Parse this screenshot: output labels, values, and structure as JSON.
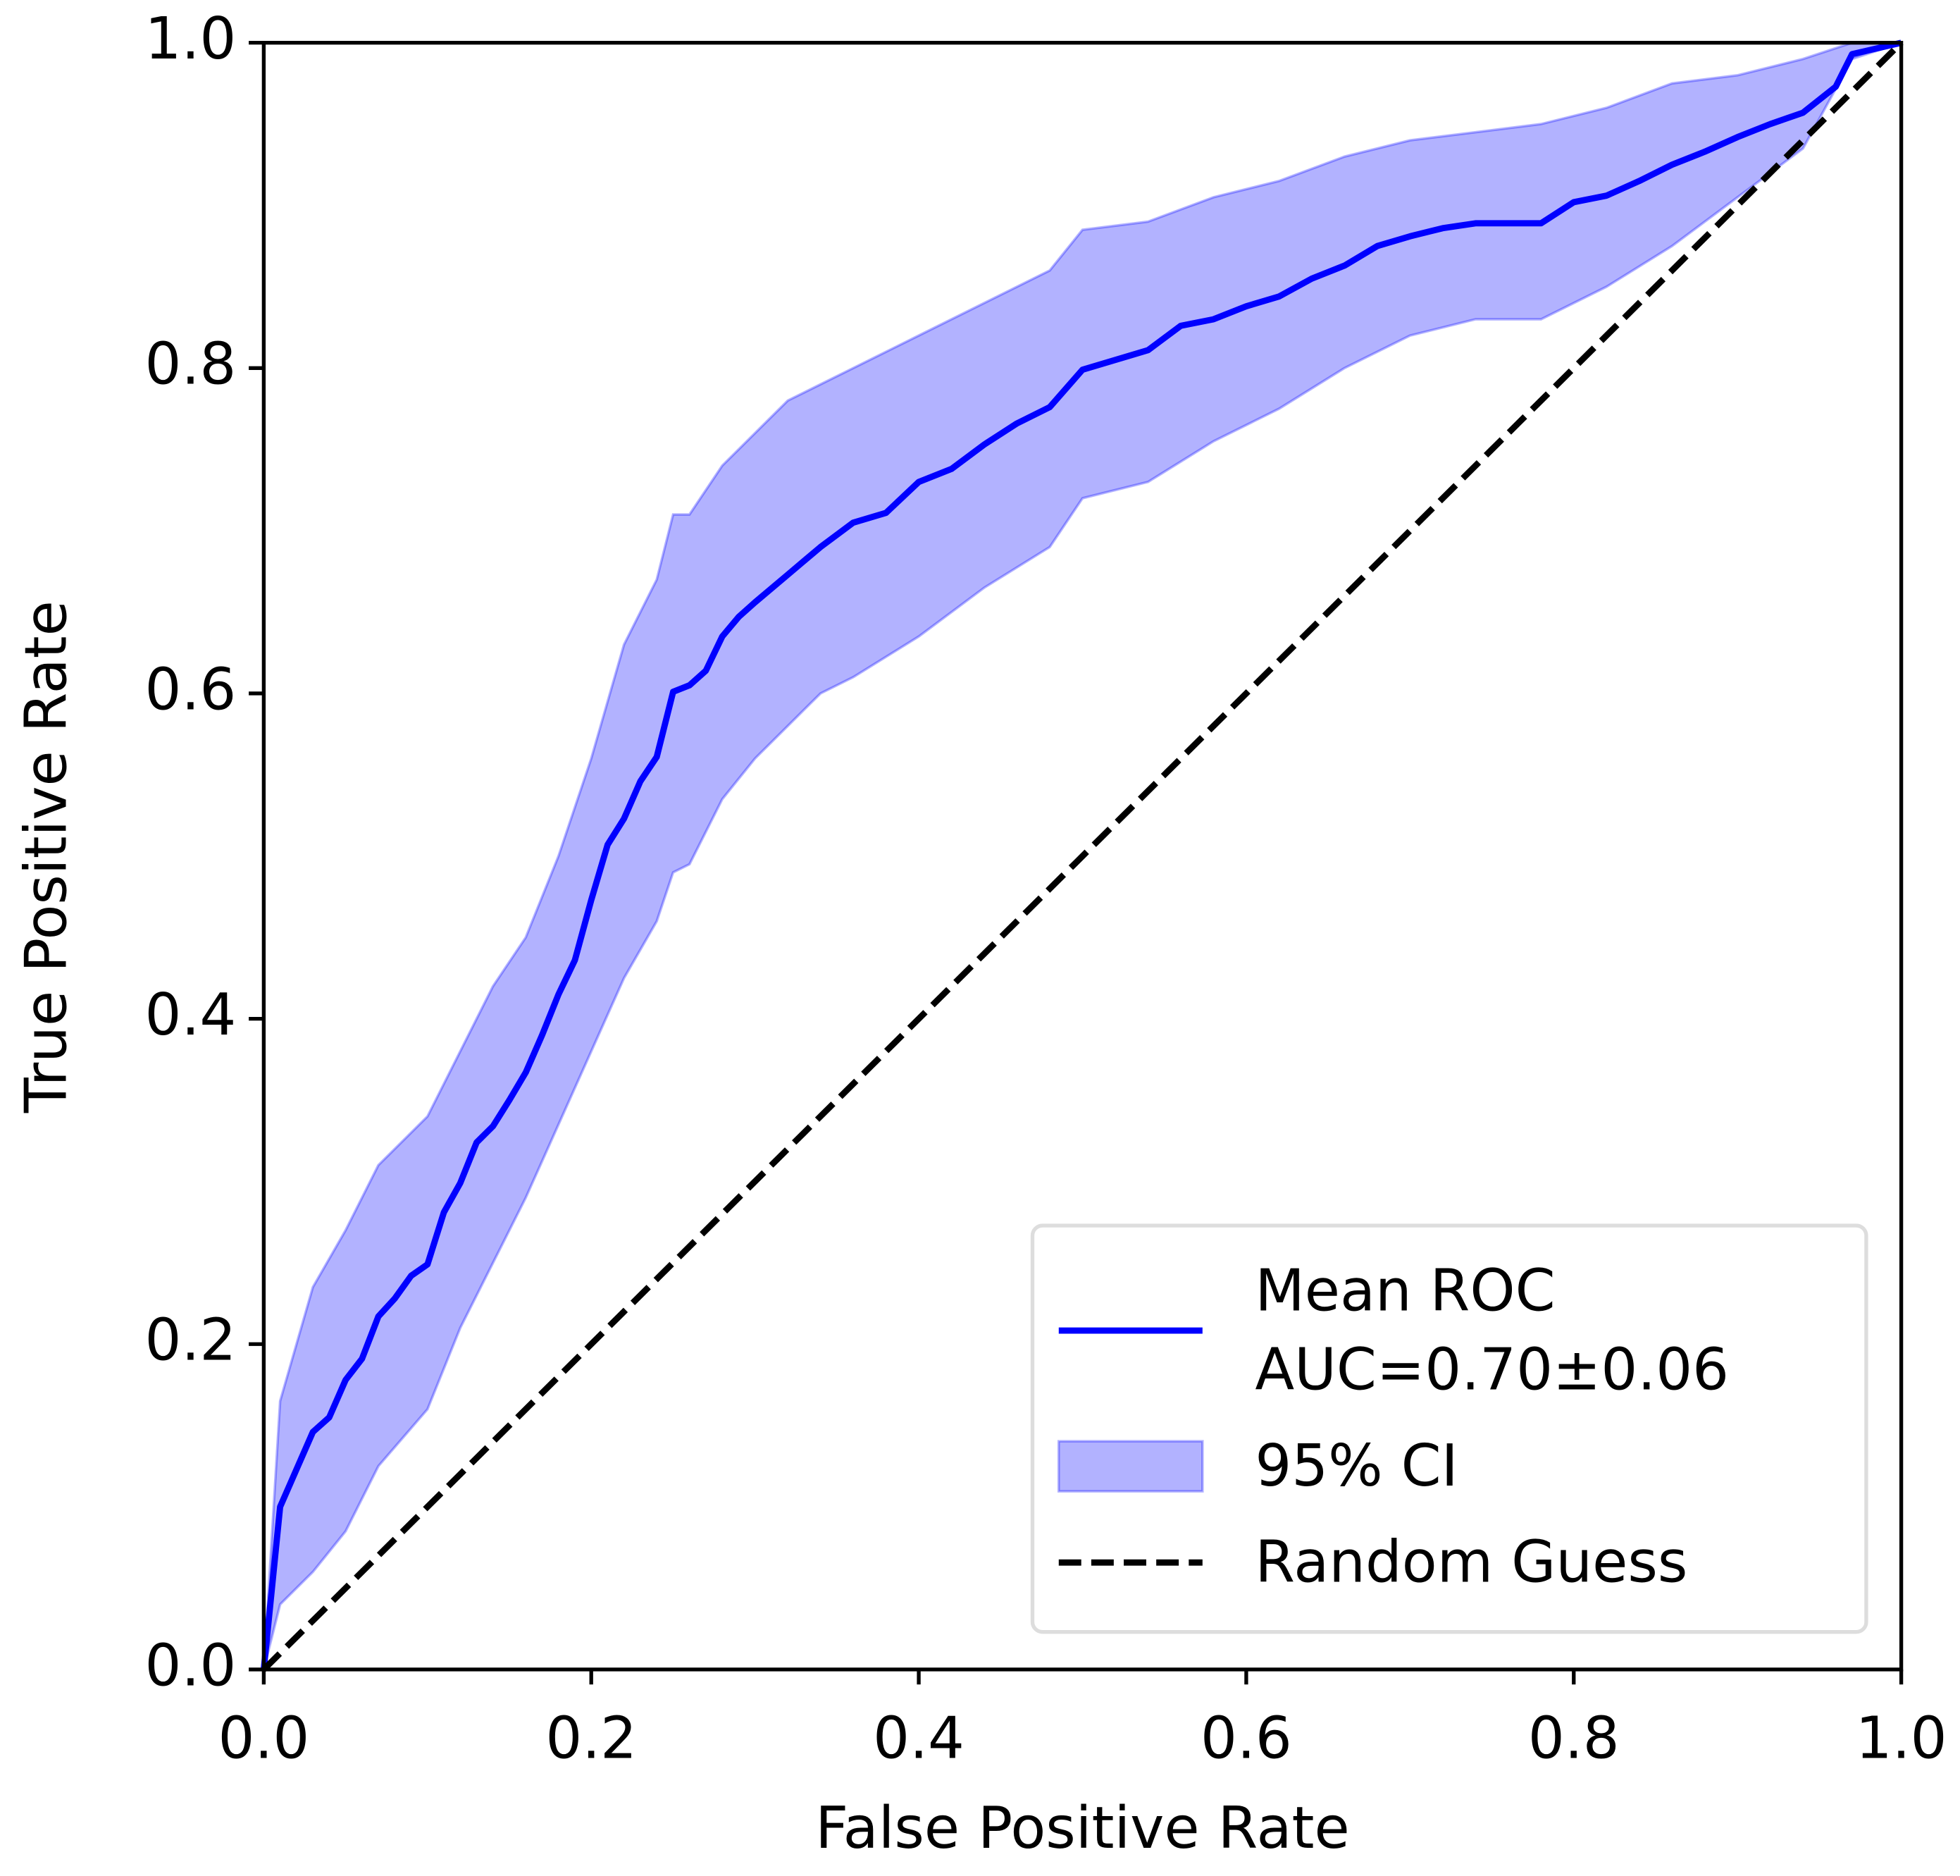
{
  "chart_data": {
    "type": "line",
    "xlabel": "False Positive Rate",
    "ylabel": "True Positive Rate",
    "xlim": [
      0,
      1
    ],
    "ylim": [
      0,
      1
    ],
    "xticks": [
      {
        "value": 0,
        "label": "0.0"
      },
      0.2,
      0.4,
      0.6,
      0.8,
      {
        "value": 1,
        "label": "1.0"
      }
    ],
    "yticks": [
      {
        "value": 0,
        "label": "0.0"
      },
      0.2,
      0.4,
      0.6,
      0.8,
      {
        "value": 1,
        "label": "1.0"
      }
    ],
    "grid": false,
    "legend": "lower right",
    "series": [
      {
        "name": "95% CI",
        "kind": "band",
        "color": "#0000ff",
        "x": [
          0,
          0.01,
          0.03,
          0.05,
          0.07,
          0.1,
          0.12,
          0.14,
          0.16,
          0.18,
          0.2,
          0.22,
          0.24,
          0.25,
          0.26,
          0.28,
          0.3,
          0.32,
          0.34,
          0.36,
          0.4,
          0.44,
          0.48,
          0.5,
          0.54,
          0.58,
          0.62,
          0.66,
          0.7,
          0.74,
          0.78,
          0.82,
          0.86,
          0.9,
          0.94,
          0.97,
          1.0
        ],
        "upper": [
          0,
          0.165,
          0.235,
          0.27,
          0.31,
          0.34,
          0.38,
          0.42,
          0.45,
          0.5,
          0.56,
          0.63,
          0.67,
          0.71,
          0.71,
          0.74,
          0.76,
          0.78,
          0.79,
          0.8,
          0.82,
          0.84,
          0.86,
          0.885,
          0.89,
          0.905,
          0.915,
          0.93,
          0.94,
          0.945,
          0.95,
          0.96,
          0.975,
          0.98,
          0.99,
          1.0,
          1.0
        ],
        "lower": [
          0,
          0.04,
          0.06,
          0.085,
          0.125,
          0.16,
          0.21,
          0.25,
          0.29,
          0.335,
          0.38,
          0.425,
          0.46,
          0.49,
          0.495,
          0.535,
          0.56,
          0.58,
          0.6,
          0.61,
          0.635,
          0.665,
          0.69,
          0.72,
          0.73,
          0.755,
          0.775,
          0.8,
          0.82,
          0.83,
          0.83,
          0.85,
          0.875,
          0.905,
          0.935,
          0.99,
          1.0
        ]
      },
      {
        "name": "Mean ROC\nAUC=0.70±0.06",
        "kind": "line",
        "linestyle": "solid",
        "color": "#0000ff",
        "x": [
          0,
          0.01,
          0.02,
          0.03,
          0.04,
          0.05,
          0.06,
          0.07,
          0.08,
          0.09,
          0.1,
          0.11,
          0.12,
          0.13,
          0.14,
          0.15,
          0.16,
          0.17,
          0.18,
          0.19,
          0.2,
          0.21,
          0.22,
          0.23,
          0.24,
          0.25,
          0.26,
          0.27,
          0.28,
          0.29,
          0.3,
          0.32,
          0.34,
          0.36,
          0.38,
          0.4,
          0.42,
          0.44,
          0.46,
          0.48,
          0.5,
          0.52,
          0.54,
          0.56,
          0.58,
          0.6,
          0.62,
          0.64,
          0.66,
          0.68,
          0.7,
          0.72,
          0.74,
          0.76,
          0.78,
          0.8,
          0.82,
          0.84,
          0.86,
          0.88,
          0.9,
          0.92,
          0.94,
          0.96,
          0.97,
          1.0
        ],
        "values": [
          0,
          0.1,
          0.123,
          0.146,
          0.155,
          0.178,
          0.191,
          0.217,
          0.228,
          0.242,
          0.249,
          0.281,
          0.299,
          0.324,
          0.334,
          0.35,
          0.367,
          0.39,
          0.415,
          0.436,
          0.473,
          0.507,
          0.523,
          0.546,
          0.561,
          0.601,
          0.605,
          0.614,
          0.635,
          0.647,
          0.656,
          0.673,
          0.69,
          0.705,
          0.711,
          0.73,
          0.738,
          0.753,
          0.766,
          0.776,
          0.799,
          0.805,
          0.811,
          0.826,
          0.83,
          0.838,
          0.844,
          0.855,
          0.863,
          0.875,
          0.881,
          0.886,
          0.889,
          0.889,
          0.889,
          0.902,
          0.906,
          0.915,
          0.925,
          0.933,
          0.942,
          0.95,
          0.957,
          0.973,
          0.993,
          1.0
        ]
      },
      {
        "name": "Random Guess",
        "kind": "line",
        "linestyle": "dashed",
        "color": "#000000",
        "x": [
          0,
          1
        ],
        "values": [
          0,
          1
        ]
      }
    ]
  }
}
